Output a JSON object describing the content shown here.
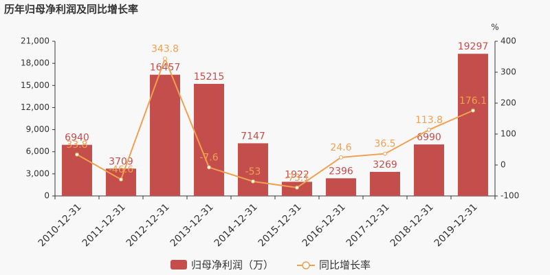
{
  "chart_data": {
    "type": "bar_line",
    "title": "历年归母净利润及同比增长率",
    "categories": [
      "2010-12-31",
      "2011-12-31",
      "2012-12-31",
      "2013-12-31",
      "2014-12-31",
      "2015-12-31",
      "2016-12-31",
      "2017-12-31",
      "2018-12-31",
      "2019-12-31"
    ],
    "series": [
      {
        "name": "归母净利润（万）",
        "color": "#c44e4c",
        "type": "bar",
        "values": [
          6940,
          3709,
          16457,
          15215,
          7147,
          1922,
          2396,
          3269,
          6990,
          19297
        ]
      },
      {
        "name": "同比增长率",
        "color": "#f0a050",
        "type": "line",
        "axis": "y2",
        "values": [
          33.8,
          -46.6,
          343.8,
          -7.6,
          -53,
          -73.1,
          24.6,
          36.5,
          113.8,
          176.1
        ]
      }
    ],
    "ylim": [
      0,
      21000
    ],
    "yticks": [
      0,
      {
        "value": 3000,
        "label": "3,000"
      },
      {
        "value": 6000,
        "label": "6,000"
      },
      {
        "value": 9000,
        "label": "9,000"
      },
      {
        "value": 12000,
        "label": "12,000"
      },
      {
        "value": 15000,
        "label": "15,000"
      },
      {
        "value": 18000,
        "label": "18,000"
      },
      {
        "value": 21000,
        "label": "21,000"
      }
    ],
    "y2label": "%",
    "y2lim": [
      -100,
      400
    ],
    "y2ticks": [
      -100,
      0,
      100,
      200,
      300,
      400
    ]
  }
}
